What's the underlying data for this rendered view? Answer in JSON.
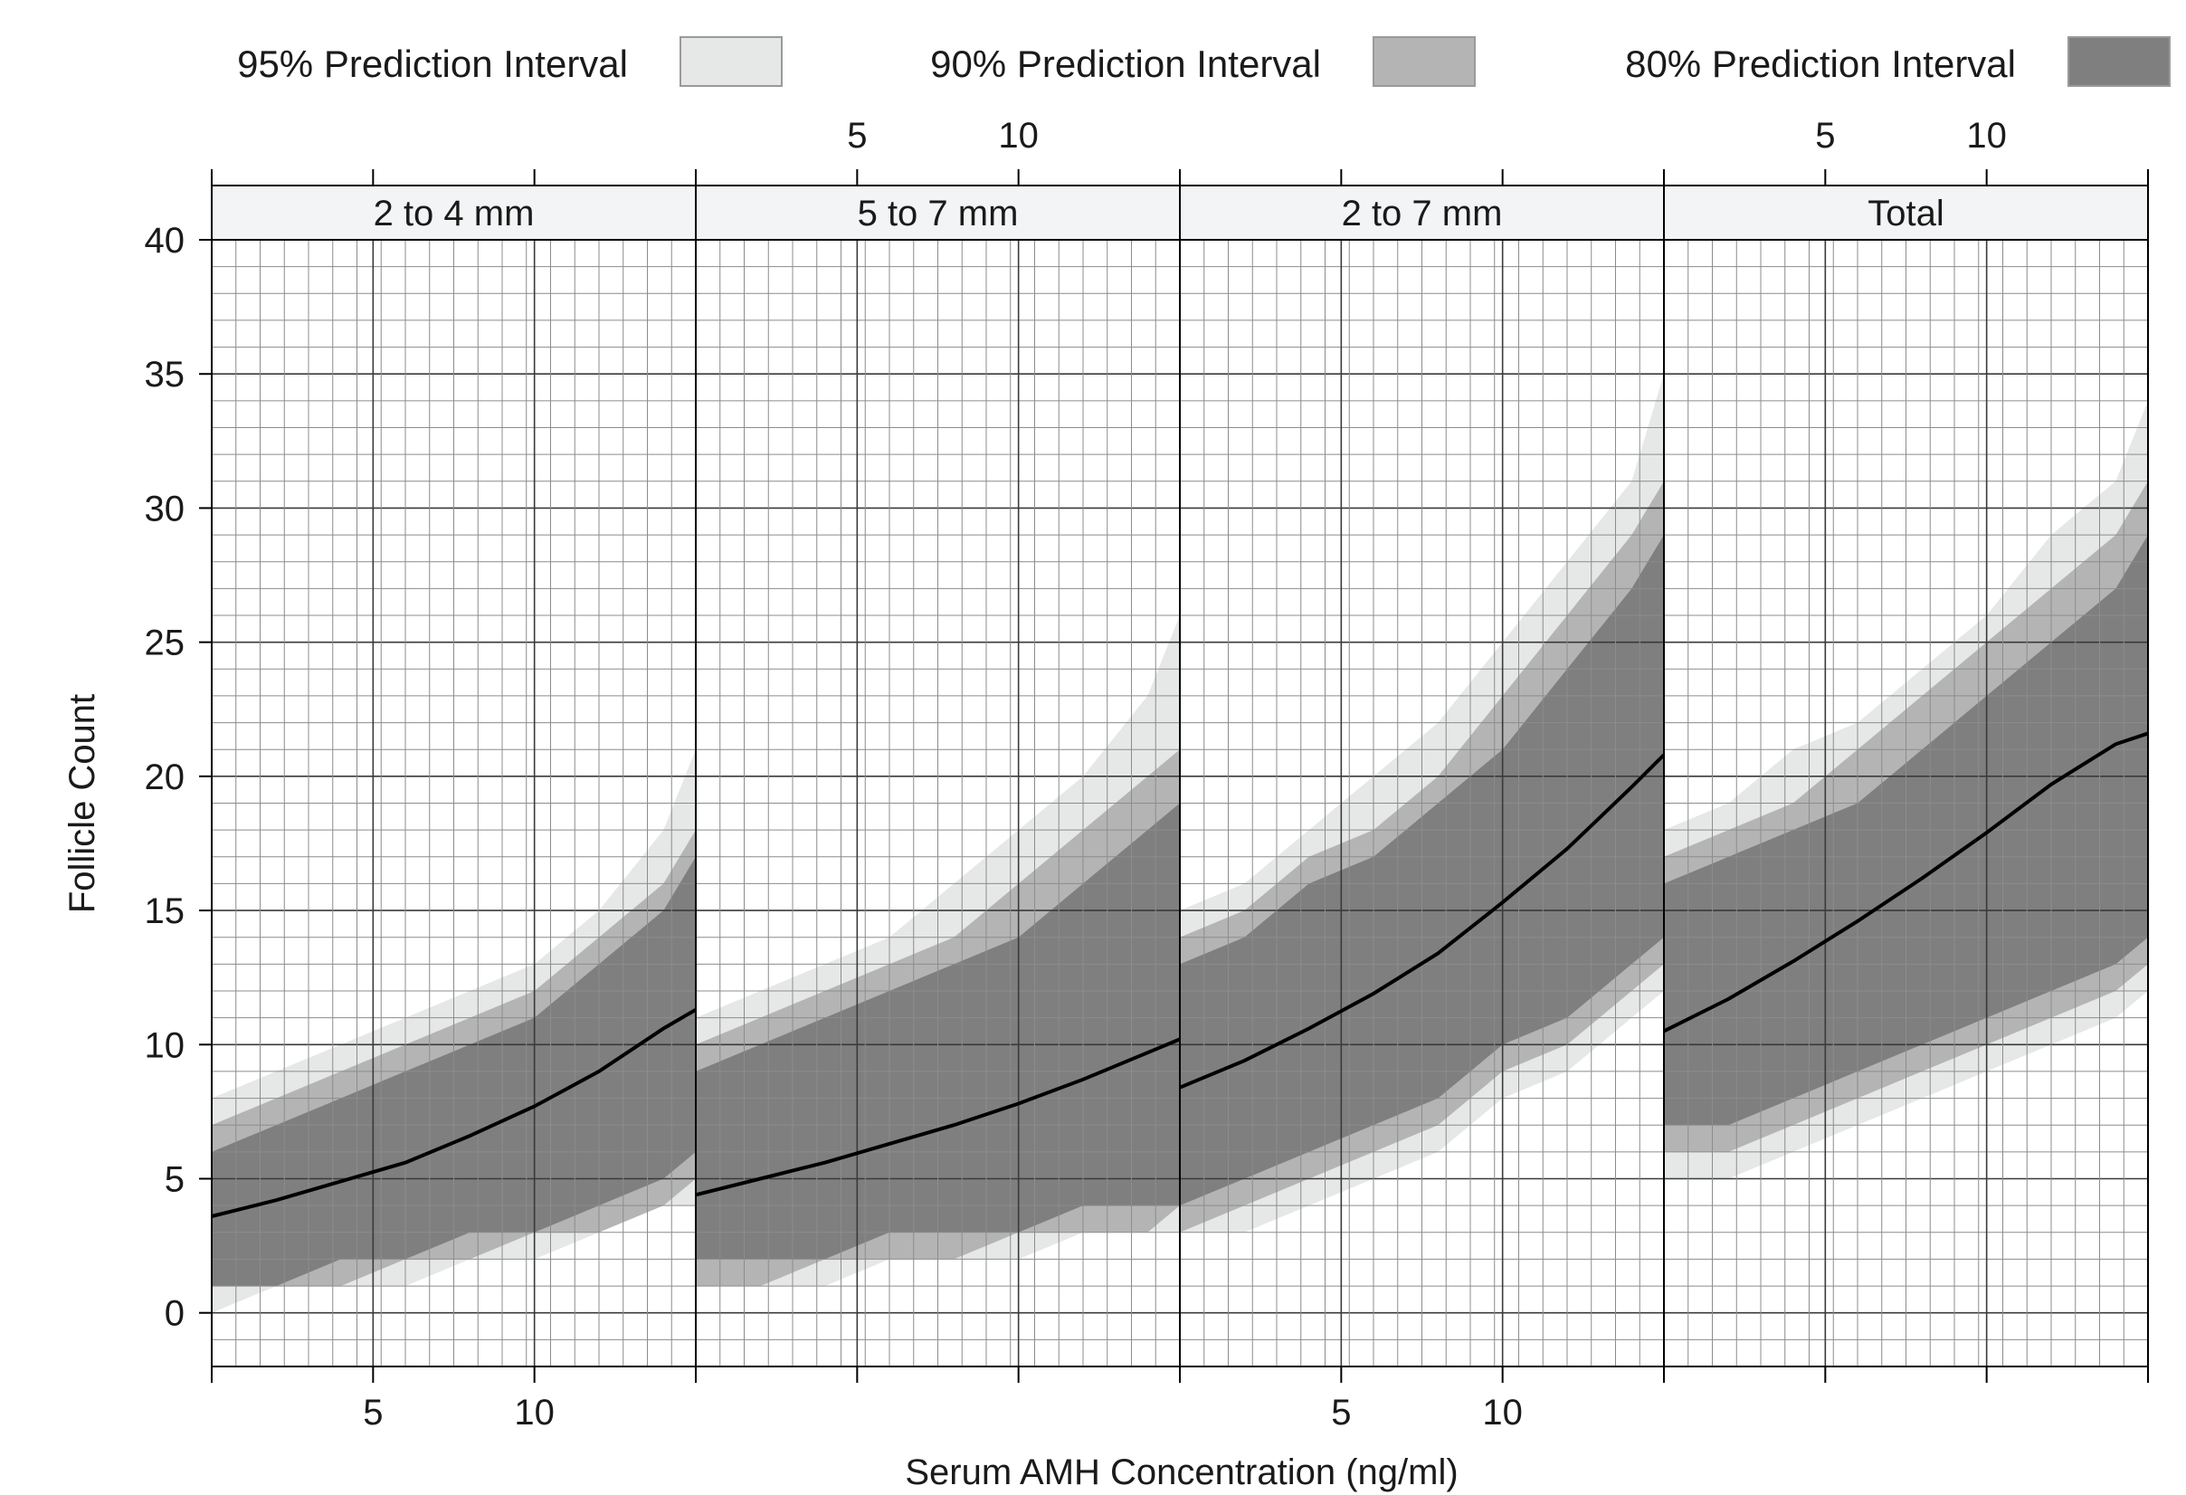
{
  "chart_data": {
    "type": "area",
    "legend": {
      "placement": "top",
      "entries": [
        {
          "label": "95% Prediction Interval",
          "color": "#e6e7e7"
        },
        {
          "label": "90% Prediction Interval",
          "color": "#b4b4b4"
        },
        {
          "label": "80% Prediction Interval",
          "color": "#7f7f7f"
        }
      ]
    },
    "xlabel": "Serum AMH Concentration (ng/ml)",
    "ylabel": "Follicle Count",
    "xlim": [
      0,
      15
    ],
    "ylim": [
      -2,
      40
    ],
    "x_ticks": [
      5,
      10
    ],
    "y_ticks": [
      0,
      5,
      10,
      15,
      20,
      25,
      30,
      35,
      40
    ],
    "grid": true,
    "line_color": "#000000",
    "panels": [
      {
        "label": "2 to 4 mm",
        "x": [
          0,
          2,
          4,
          6,
          8,
          10,
          12,
          14,
          15
        ],
        "fit": [
          3.6,
          4.2,
          4.9,
          5.6,
          6.6,
          7.7,
          9.0,
          10.6,
          11.3
        ],
        "pi80": [
          [
            1,
            6
          ],
          [
            1,
            7
          ],
          [
            2,
            8
          ],
          [
            2,
            9
          ],
          [
            3,
            10
          ],
          [
            3,
            11
          ],
          [
            4,
            13
          ],
          [
            5,
            15
          ],
          [
            6,
            17
          ]
        ],
        "pi90": [
          [
            1,
            7
          ],
          [
            1,
            8
          ],
          [
            1,
            9
          ],
          [
            2,
            10
          ],
          [
            2,
            11
          ],
          [
            3,
            12
          ],
          [
            3,
            14
          ],
          [
            4,
            16
          ],
          [
            5,
            18
          ]
        ],
        "pi95": [
          [
            0,
            8
          ],
          [
            1,
            9
          ],
          [
            1,
            10
          ],
          [
            1,
            11
          ],
          [
            2,
            12
          ],
          [
            2,
            13
          ],
          [
            3,
            15
          ],
          [
            4,
            18
          ],
          [
            4,
            21
          ]
        ]
      },
      {
        "label": "5 to 7 mm",
        "x": [
          0,
          2,
          4,
          6,
          8,
          10,
          12,
          14,
          15
        ],
        "fit": [
          4.4,
          5.0,
          5.6,
          6.3,
          7.0,
          7.8,
          8.7,
          9.7,
          10.2
        ],
        "pi80": [
          [
            2,
            9
          ],
          [
            2,
            10
          ],
          [
            2,
            11
          ],
          [
            3,
            12
          ],
          [
            3,
            13
          ],
          [
            3,
            14
          ],
          [
            4,
            16
          ],
          [
            4,
            18
          ],
          [
            4,
            19
          ]
        ],
        "pi90": [
          [
            1,
            10
          ],
          [
            1,
            11
          ],
          [
            2,
            12
          ],
          [
            2,
            13
          ],
          [
            2,
            14
          ],
          [
            3,
            16
          ],
          [
            3,
            18
          ],
          [
            3,
            20
          ],
          [
            4,
            21
          ]
        ],
        "pi95": [
          [
            1,
            11
          ],
          [
            1,
            12
          ],
          [
            1,
            13
          ],
          [
            2,
            14
          ],
          [
            2,
            16
          ],
          [
            2,
            18
          ],
          [
            3,
            20
          ],
          [
            3,
            23
          ],
          [
            3,
            26
          ]
        ]
      },
      {
        "label": "2 to 7 mm",
        "x": [
          0,
          2,
          4,
          6,
          8,
          10,
          12,
          14,
          15
        ],
        "fit": [
          8.4,
          9.4,
          10.6,
          11.9,
          13.4,
          15.3,
          17.3,
          19.6,
          20.8
        ],
        "pi80": [
          [
            4,
            13
          ],
          [
            5,
            14
          ],
          [
            6,
            16
          ],
          [
            7,
            17
          ],
          [
            8,
            19
          ],
          [
            10,
            21
          ],
          [
            11,
            24
          ],
          [
            13,
            27
          ],
          [
            14,
            29
          ]
        ],
        "pi90": [
          [
            3,
            14
          ],
          [
            4,
            15
          ],
          [
            5,
            17
          ],
          [
            6,
            18
          ],
          [
            7,
            20
          ],
          [
            9,
            23
          ],
          [
            10,
            26
          ],
          [
            12,
            29
          ],
          [
            13,
            31
          ]
        ],
        "pi95": [
          [
            3,
            15
          ],
          [
            3,
            16
          ],
          [
            4,
            18
          ],
          [
            5,
            20
          ],
          [
            6,
            22
          ],
          [
            8,
            25
          ],
          [
            9,
            28
          ],
          [
            11,
            31
          ],
          [
            12,
            35
          ]
        ]
      },
      {
        "label": "Total",
        "x": [
          0,
          2,
          4,
          6,
          8,
          10,
          12,
          14,
          15
        ],
        "fit": [
          10.5,
          11.7,
          13.1,
          14.6,
          16.2,
          17.9,
          19.7,
          21.2,
          21.6
        ],
        "pi80": [
          [
            7,
            16
          ],
          [
            7,
            17
          ],
          [
            8,
            18
          ],
          [
            9,
            19
          ],
          [
            10,
            21
          ],
          [
            11,
            23
          ],
          [
            12,
            25
          ],
          [
            13,
            27
          ],
          [
            14,
            29
          ]
        ],
        "pi90": [
          [
            6,
            17
          ],
          [
            6,
            18
          ],
          [
            7,
            19
          ],
          [
            8,
            21
          ],
          [
            9,
            23
          ],
          [
            10,
            25
          ],
          [
            11,
            27
          ],
          [
            12,
            29
          ],
          [
            13,
            31
          ]
        ],
        "pi95": [
          [
            5,
            18
          ],
          [
            5,
            19
          ],
          [
            6,
            21
          ],
          [
            7,
            22
          ],
          [
            8,
            24
          ],
          [
            9,
            26
          ],
          [
            10,
            29
          ],
          [
            11,
            31
          ],
          [
            12,
            34
          ]
        ]
      }
    ]
  }
}
